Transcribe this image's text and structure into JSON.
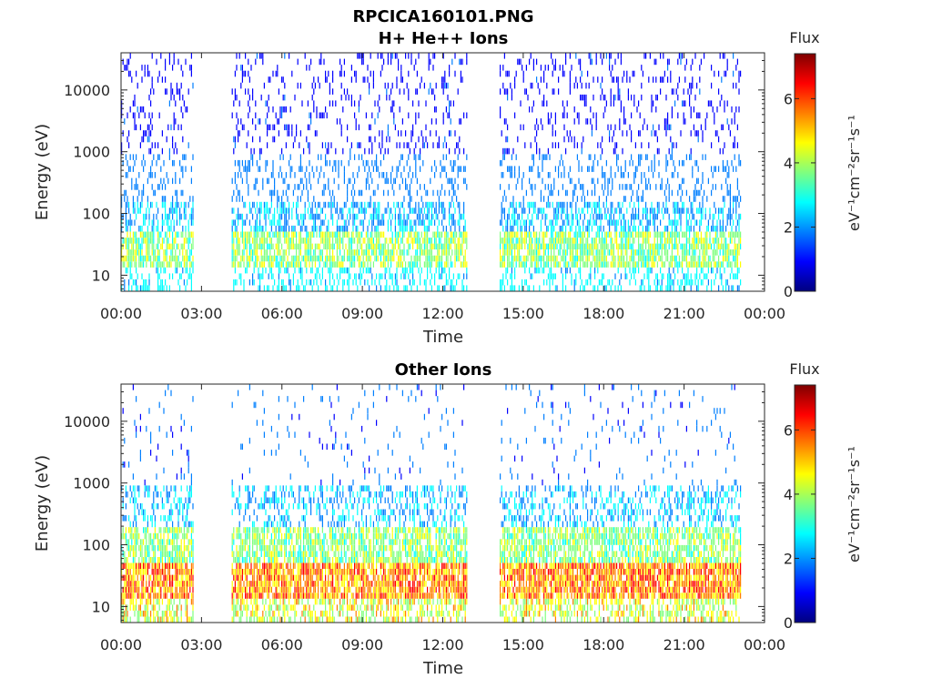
{
  "figure": {
    "title": "RPCICA160101.PNG"
  },
  "colormap": [
    "#00007f",
    "#0000ff",
    "#007fff",
    "#00ffff",
    "#7fff7f",
    "#ffff00",
    "#ff7f00",
    "#ff0000",
    "#7f0000"
  ],
  "chart_data": [
    {
      "type": "heatmap",
      "title": "H+ He++ Ions",
      "xlabel": "Time",
      "ylabel": "Energy (eV)",
      "x_ticks": [
        "00:00",
        "03:00",
        "06:00",
        "09:00",
        "12:00",
        "15:00",
        "18:00",
        "21:00",
        "00:00"
      ],
      "x_range_hours": [
        0,
        24
      ],
      "y_scale": "log",
      "y_range": [
        5.5,
        40000
      ],
      "y_ticks": [
        10,
        100,
        1000,
        10000
      ],
      "y_tick_labels": [
        "10",
        "100",
        "1000",
        "10000"
      ],
      "data_gaps_hours": [
        [
          2.7,
          4.1
        ],
        [
          12.9,
          14.1
        ]
      ],
      "data_end_hours": 23.1,
      "colorbar": {
        "label_top": "Flux",
        "label_side": "eV⁻¹cm⁻²sr⁻¹s⁻¹",
        "range": [
          0,
          7.4
        ],
        "ticks": [
          0,
          2,
          4,
          6
        ],
        "tick_labels": [
          "0",
          "2",
          "4",
          "6"
        ]
      }
    },
    {
      "type": "heatmap",
      "title": "Other Ions",
      "xlabel": "Time",
      "ylabel": "Energy (eV)",
      "x_ticks": [
        "00:00",
        "03:00",
        "06:00",
        "09:00",
        "12:00",
        "15:00",
        "18:00",
        "21:00",
        "00:00"
      ],
      "x_range_hours": [
        0,
        24
      ],
      "y_scale": "log",
      "y_range": [
        5.5,
        40000
      ],
      "y_ticks": [
        10,
        100,
        1000,
        10000
      ],
      "y_tick_labels": [
        "10",
        "100",
        "1000",
        "10000"
      ],
      "data_gaps_hours": [
        [
          2.7,
          4.1
        ],
        [
          12.9,
          14.1
        ]
      ],
      "data_end_hours": 23.1,
      "colorbar": {
        "label_top": "Flux",
        "label_side": "eV⁻¹cm⁻²sr⁻¹s⁻¹",
        "range": [
          0,
          7.4
        ],
        "ticks": [
          0,
          2,
          4,
          6
        ],
        "tick_labels": [
          "0",
          "2",
          "4",
          "6"
        ]
      }
    }
  ]
}
